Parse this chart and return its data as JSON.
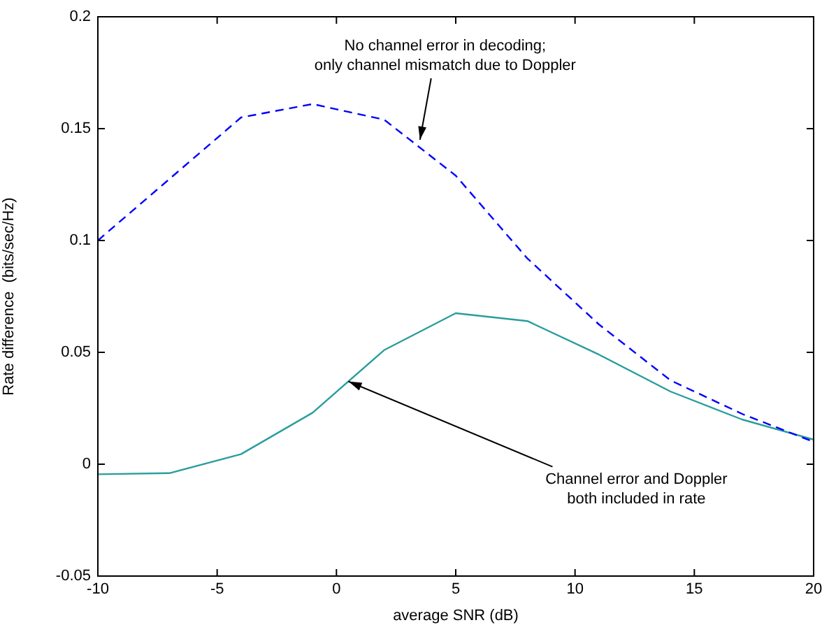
{
  "chart_data": {
    "type": "line",
    "xlabel": "average SNR (dB)",
    "ylabel": "Rate difference  (bits/sec/Hz)",
    "x": [
      -10,
      -7,
      -4,
      -1,
      2,
      5,
      8,
      11,
      14,
      17,
      20
    ],
    "series": [
      {
        "color": "#0000ff",
        "line_style": "dashed",
        "values": [
          0.1,
          0.1275,
          0.155,
          0.161,
          0.154,
          0.129,
          0.092,
          0.0625,
          0.0375,
          0.0225,
          0.01
        ]
      },
      {
        "color": "#2a9d9d",
        "line_style": "solid",
        "values": [
          -0.0045,
          -0.004,
          0.0045,
          0.023,
          0.051,
          0.0675,
          0.064,
          0.049,
          0.0325,
          0.02,
          0.011
        ]
      }
    ],
    "xlim": [
      -10,
      20
    ],
    "xticks": [
      -10,
      -5,
      0,
      5,
      10,
      15,
      20
    ],
    "ylim": [
      -0.05,
      0.2
    ],
    "yticks": [
      -0.05,
      0,
      0.05,
      0.1,
      0.15,
      0.2
    ],
    "grid": false,
    "legend": false,
    "marker": "none",
    "annotations": [
      {
        "text": "No channel error in decoding;\nonly channel mismatch due to Doppler",
        "x": 3.5,
        "y": 0.145
      },
      {
        "text": "Channel error and Doppler\nboth included in rate",
        "x": 0.5,
        "y": 0.037
      }
    ]
  }
}
